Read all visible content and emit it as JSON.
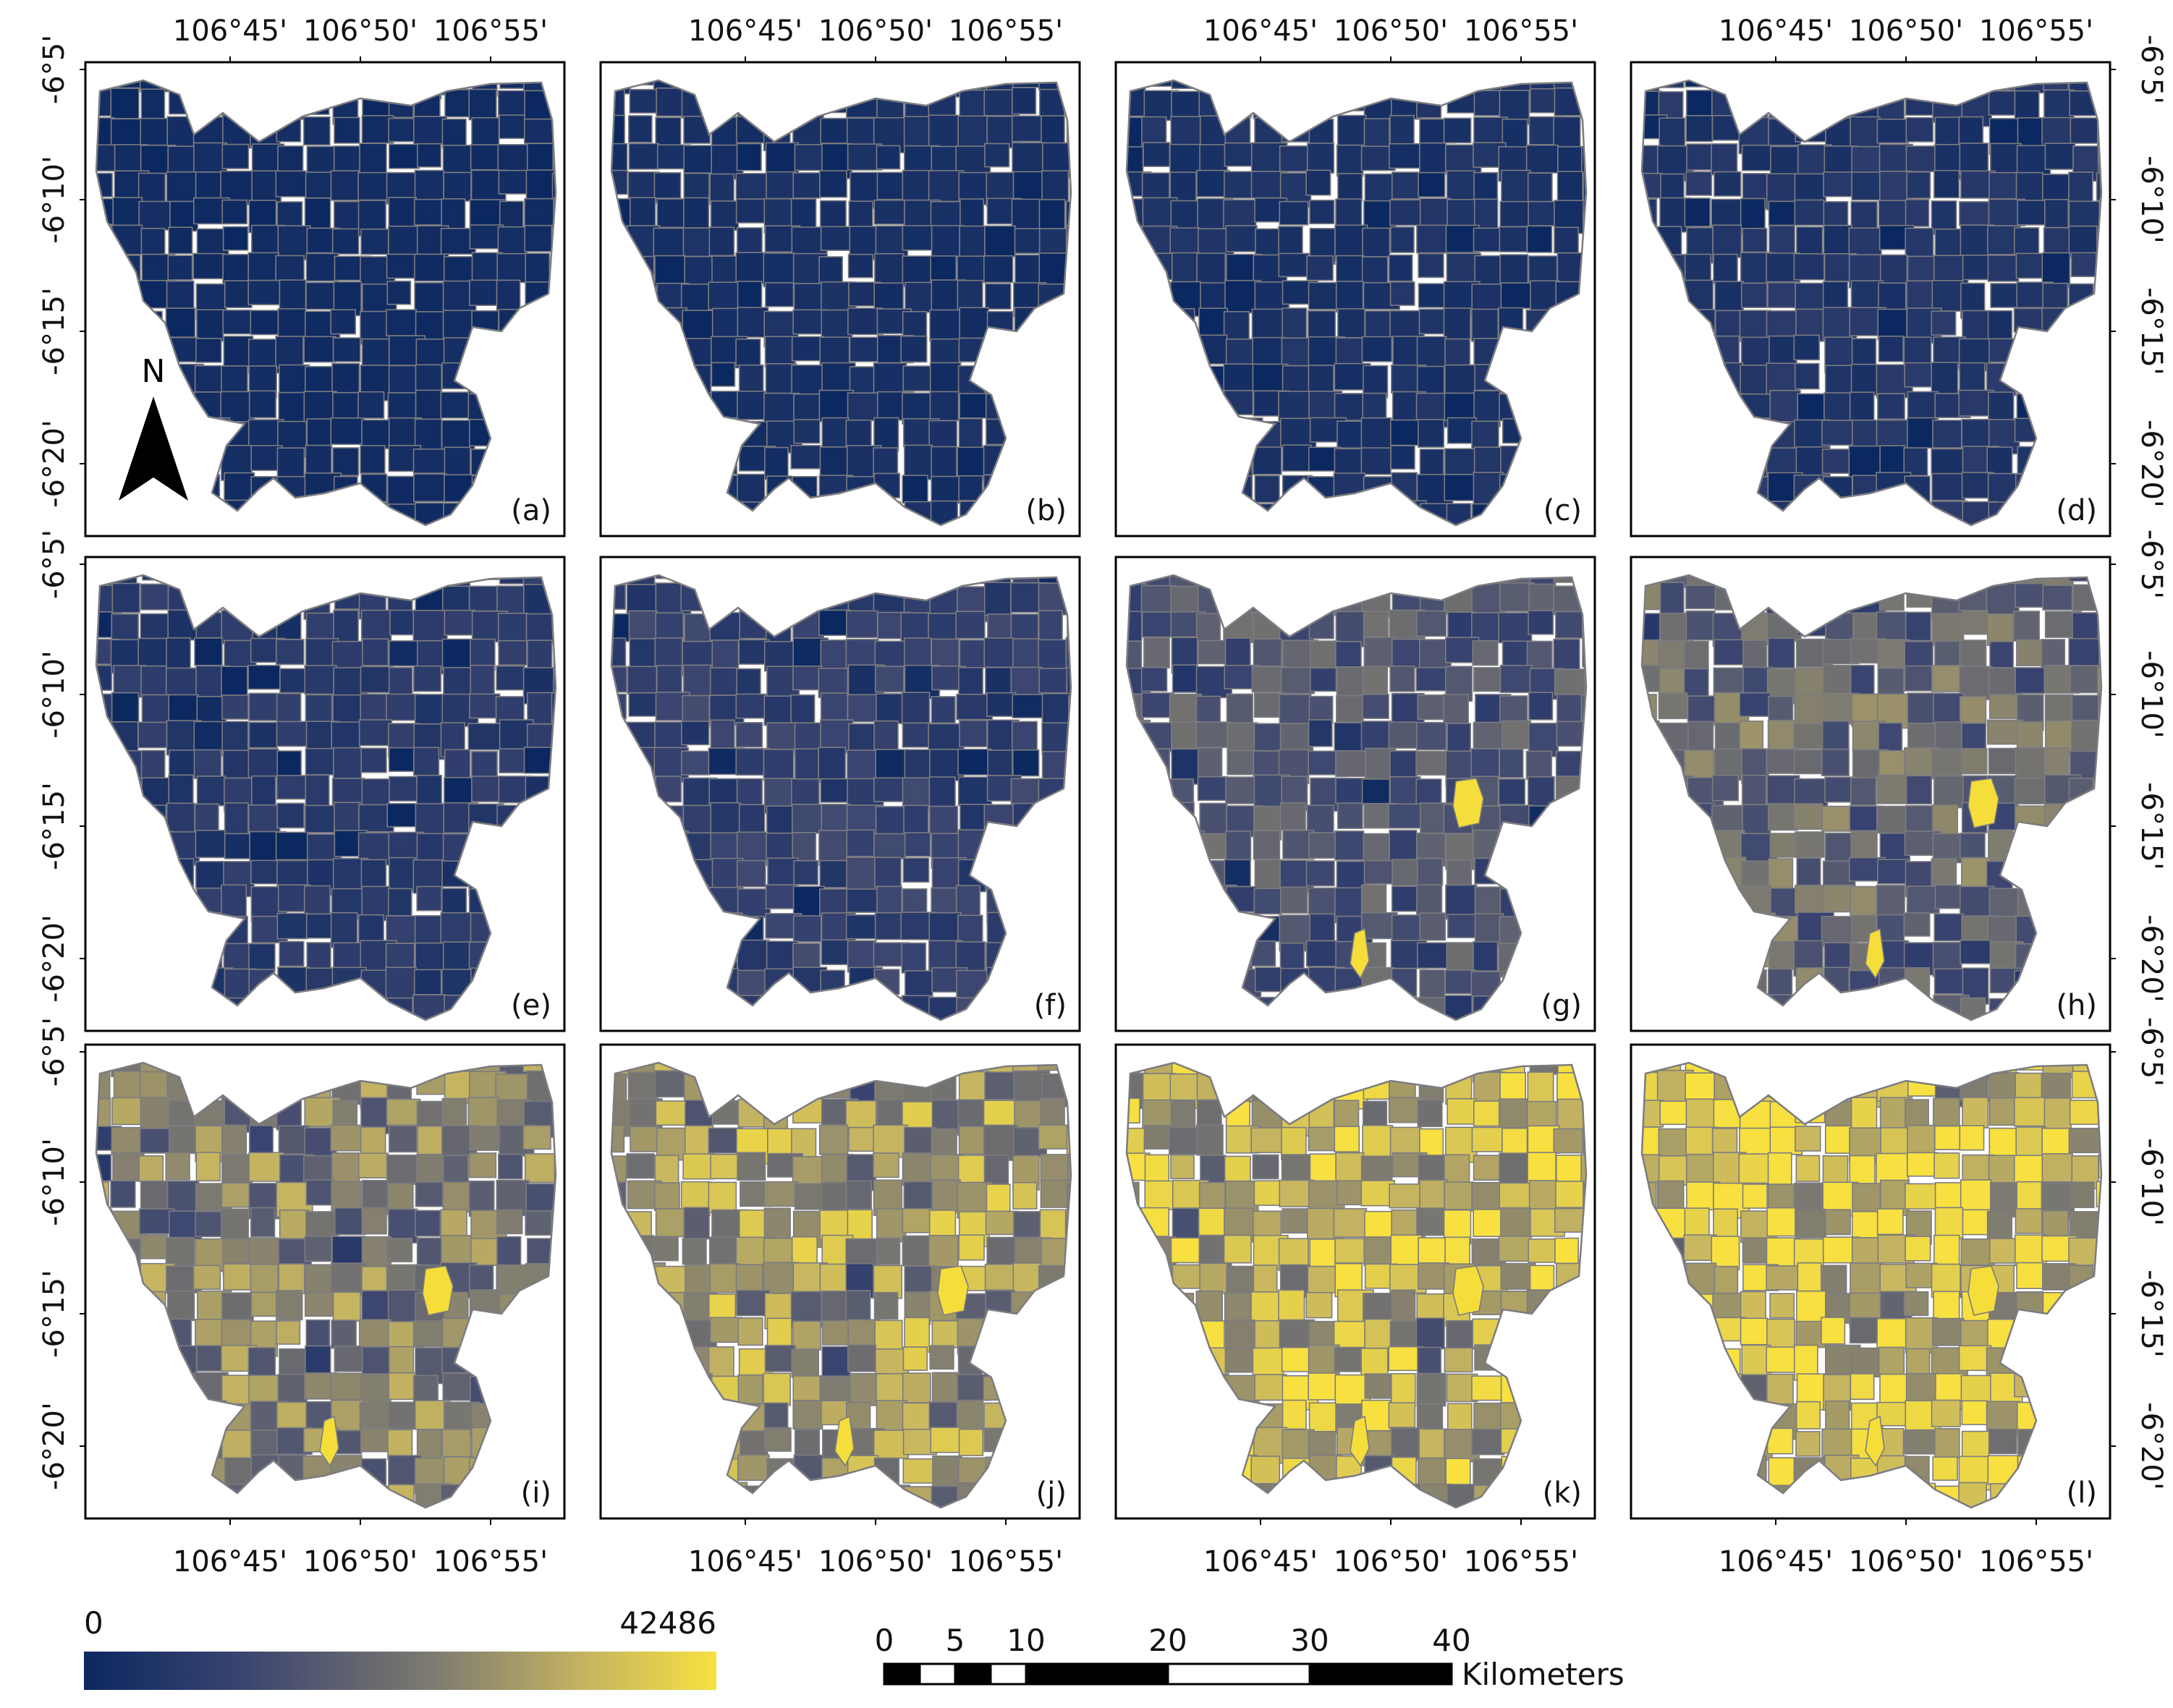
{
  "axes": {
    "lon_ticks": [
      "106°45'",
      "106°50'",
      "106°55'"
    ],
    "lat_ticks": [
      "-6°5'",
      "-6°10'",
      "-6°15'",
      "-6°20'"
    ]
  },
  "north_arrow": {
    "label": "N"
  },
  "panels": [
    {
      "id": "a",
      "label": "(a)",
      "base": "#0d2a5e",
      "bright": 0.04,
      "hot": 0
    },
    {
      "id": "b",
      "label": "(b)",
      "base": "#0f2d62",
      "bright": 0.07,
      "hot": 0
    },
    {
      "id": "c",
      "label": "(c)",
      "base": "#102e64",
      "bright": 0.09,
      "hot": 0
    },
    {
      "id": "d",
      "label": "(d)",
      "base": "#11306a",
      "bright": 0.12,
      "hot": 0
    },
    {
      "id": "e",
      "label": "(e)",
      "base": "#12336e",
      "bright": 0.15,
      "hot": 0
    },
    {
      "id": "f",
      "label": "(f)",
      "base": "#15386f",
      "bright": 0.2,
      "hot": 0
    },
    {
      "id": "g",
      "label": "(g)",
      "base": "#2a3f6c",
      "bright": 0.32,
      "hot": 1
    },
    {
      "id": "h",
      "label": "(h)",
      "base": "#404a68",
      "bright": 0.42,
      "hot": 1
    },
    {
      "id": "i",
      "label": "(i)",
      "base": "#5b5d6e",
      "bright": 0.52,
      "hot": 1
    },
    {
      "id": "j",
      "label": "(j)",
      "base": "#76735f",
      "bright": 0.64,
      "hot": 1
    },
    {
      "id": "k",
      "label": "(k)",
      "base": "#8f8660",
      "bright": 0.76,
      "hot": 1
    },
    {
      "id": "l",
      "label": "(l)",
      "base": "#a89b5c",
      "bright": 0.86,
      "hot": 1
    }
  ],
  "legend": {
    "min_label": "0",
    "max_label": "42486",
    "colors": [
      "#0b2860",
      "#3a4470",
      "#7d7a70",
      "#c7b660",
      "#f7e040"
    ]
  },
  "scale_bar": {
    "ticks": [
      "0",
      "5",
      "10",
      "20",
      "30",
      "40"
    ],
    "unit": "Kilometers"
  },
  "colors": {
    "boundary": "#7c7c80",
    "frame": "#000000",
    "hotspot": "#f5de3a"
  }
}
